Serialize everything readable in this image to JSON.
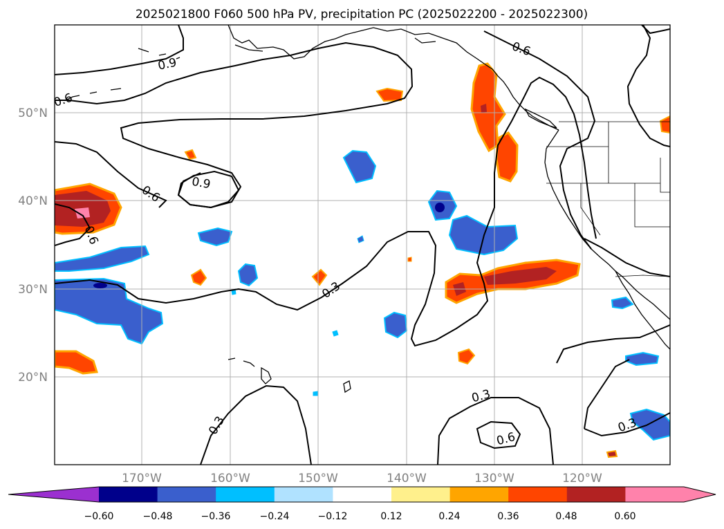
{
  "title": "2025021800 F060 500 hPa PV, precipitation PC (2025022200 - 2025022300)",
  "map": {
    "lat_labels": [
      "50°N",
      "40°N",
      "30°N",
      "20°N"
    ],
    "lon_labels": [
      "170°W",
      "160°W",
      "150°W",
      "140°W",
      "130°W",
      "120°W"
    ],
    "contour_labels": [
      "0.9",
      "0.6",
      "0.6",
      "0.9",
      "0.6",
      "0.6",
      "0.3",
      "0.3",
      "0.6",
      "0.3",
      "0.3"
    ]
  },
  "colorbar": {
    "colors": [
      "#9b30d0",
      "#00008b",
      "#3a5fcd",
      "#00bfff",
      "#b0e2ff",
      "#ffffff",
      "#fff08c",
      "#ffa500",
      "#ff4500",
      "#b22222",
      "#ff82ab",
      "#ff82ab"
    ],
    "ticks": [
      "−0.60",
      "−0.48",
      "−0.36",
      "−0.24",
      "−0.12",
      "0.12",
      "0.24",
      "0.36",
      "0.48",
      "0.60"
    ]
  },
  "chart_data": {
    "type": "heatmap",
    "title": "2025021800 F060 500 hPa PV, precipitation PC (2025022200 - 2025022300)",
    "lon_range": [
      -180,
      -110
    ],
    "lat_range": [
      10,
      60
    ],
    "gridlines": true,
    "color_levels": [
      -0.6,
      -0.48,
      -0.36,
      -0.24,
      -0.12,
      0.12,
      0.24,
      0.36,
      0.48,
      0.6
    ],
    "contour_levels": [
      0.3,
      0.6,
      0.9
    ]
  }
}
